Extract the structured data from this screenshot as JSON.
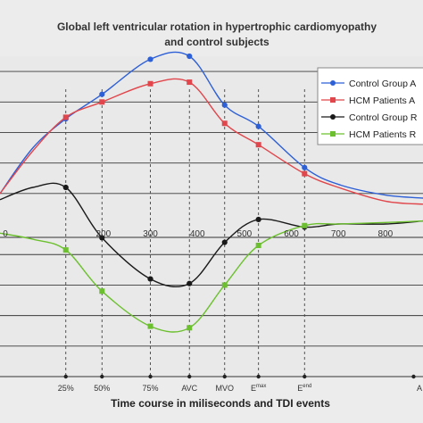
{
  "chart_data": {
    "type": "line",
    "title_lines": [
      "Global left ventricular rotation in hypertrophic cardiomyopathy",
      "and control subjects"
    ],
    "xlabel": "Time course in miliseconds and TDI events",
    "ylabel": "",
    "x_tick_labels": [
      "0",
      "200",
      "300",
      "400",
      "500",
      "600",
      "700",
      "800"
    ],
    "event_labels": [
      "25%",
      "50%",
      "75%",
      "AVC",
      "MVO",
      "E",
      "E",
      "A"
    ],
    "event_superscripts": [
      "",
      "",
      "",
      "",
      "",
      "max",
      "end",
      ""
    ],
    "event_x": [
      120,
      197,
      300,
      383,
      458,
      530,
      628,
      860
    ],
    "xlim": [
      -20,
      880
    ],
    "ylim": [
      -10,
      11
    ],
    "series": [
      {
        "name": "Control Group A",
        "color": "#2d5fd6",
        "x": [
          -20,
          50,
          120,
          197,
          300,
          383,
          458,
          530,
          628,
          700,
          800,
          880
        ],
        "y": [
          2.0,
          5.0,
          6.9,
          8.5,
          10.8,
          11.0,
          7.8,
          6.4,
          3.7,
          2.6,
          1.9,
          1.7
        ],
        "markers": [
          120,
          197,
          300,
          383,
          458,
          530,
          628
        ]
      },
      {
        "name": "HCM Patients A",
        "color": "#e0464b",
        "x": [
          -20,
          50,
          120,
          197,
          300,
          383,
          458,
          530,
          628,
          700,
          800,
          880
        ],
        "y": [
          2.0,
          4.8,
          7.0,
          8.0,
          9.2,
          9.3,
          6.6,
          5.2,
          3.3,
          2.4,
          1.5,
          1.3
        ],
        "markers": [
          120,
          197,
          300,
          383,
          458,
          530,
          628
        ]
      },
      {
        "name": "Control Group R",
        "color": "#1a1a1a",
        "x": [
          -20,
          50,
          120,
          197,
          300,
          383,
          458,
          530,
          628,
          700,
          800,
          880
        ],
        "y": [
          1.6,
          2.4,
          2.4,
          -0.9,
          -3.6,
          -3.9,
          -1.2,
          0.3,
          -0.2,
          0.0,
          0.0,
          0.2
        ],
        "markers": [
          120,
          197,
          300,
          383,
          458,
          530,
          628
        ]
      },
      {
        "name": "HCM Patients R",
        "color": "#6cc02f",
        "x": [
          -20,
          50,
          120,
          197,
          300,
          383,
          458,
          530,
          628,
          700,
          800,
          880
        ],
        "y": [
          -0.6,
          -1.0,
          -1.7,
          -4.4,
          -6.7,
          -6.8,
          -4.0,
          -1.4,
          -0.1,
          0.0,
          0.1,
          0.2
        ],
        "markers": [
          120,
          197,
          300,
          383,
          458,
          530,
          628
        ]
      }
    ],
    "legend": {
      "placement": "top-right",
      "entries": [
        "Control Group A",
        "HCM Patients A",
        "Control Group R",
        "HCM Patients R"
      ]
    },
    "grid": "horizontal"
  }
}
